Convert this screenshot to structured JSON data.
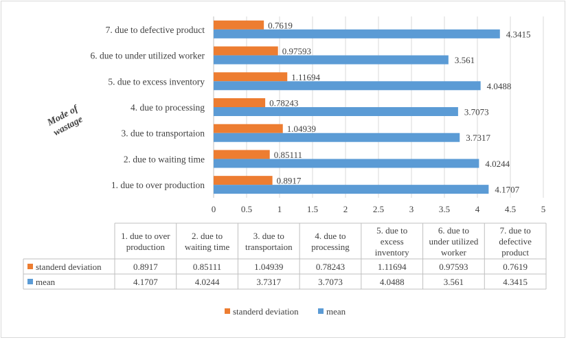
{
  "chart_data": {
    "type": "bar",
    "orientation": "horizontal",
    "ylabel": "Mode of wastage",
    "categories": [
      "1. due to over production",
      "2. due to waiting time",
      "3. due to transportaion",
      "4. due to processing",
      "5. due to excess inventory",
      "6. due to under utilized worker",
      "7. due to defective product"
    ],
    "table_headers": [
      [
        "1. due to over",
        "production"
      ],
      [
        "2. due to",
        "waiting time"
      ],
      [
        "3. due to",
        "transportaion"
      ],
      [
        "4. due to",
        "processing"
      ],
      [
        "5. due to",
        "excess",
        "inventory"
      ],
      [
        "6. due to",
        "under utilized",
        "worker"
      ],
      [
        "7. due to",
        "defective",
        "product"
      ]
    ],
    "series": [
      {
        "name": "standerd deviation",
        "color": "#ED7D31",
        "values": [
          0.8917,
          0.85111,
          1.04939,
          0.78243,
          1.11694,
          0.97593,
          0.7619
        ],
        "labels": [
          "0.8917",
          "0.85111",
          "1.04939",
          "0.78243",
          "1.11694",
          "0.97593",
          "0.7619"
        ]
      },
      {
        "name": "mean",
        "color": "#5B9BD5",
        "values": [
          4.1707,
          4.0244,
          3.7317,
          3.7073,
          4.0488,
          3.561,
          4.3415
        ],
        "labels": [
          "4.1707",
          "4.0244",
          "3.7317",
          "3.7073",
          "4.0488",
          "3.561",
          "4.3415"
        ]
      }
    ],
    "xlim": [
      0,
      5
    ],
    "xticks": [
      "0",
      "0.5",
      "1",
      "1.5",
      "2",
      "2.5",
      "3",
      "3.5",
      "4",
      "4.5",
      "5"
    ],
    "grid": true,
    "legend_position": "bottom",
    "data_table": true
  }
}
